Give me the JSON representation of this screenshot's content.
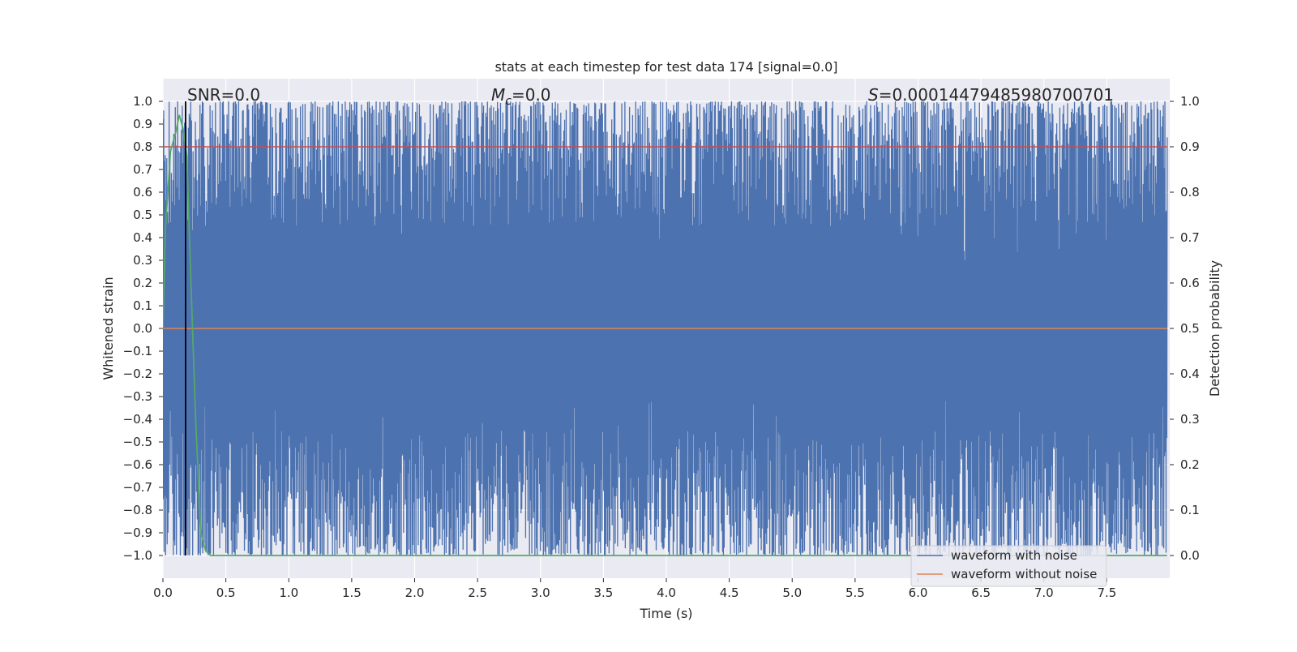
{
  "chart_data": {
    "type": "line",
    "title": "stats at each timestep for test data 174 [signal=0.0]",
    "xlabel": "Time (s)",
    "ylabel": "Whitened strain",
    "y2label": "Detection probability",
    "xlim": [
      0.0,
      8.0
    ],
    "ylim": [
      -1.1,
      1.1
    ],
    "y2lim": [
      -0.05,
      1.05
    ],
    "x_ticks": [
      "0.0",
      "0.5",
      "1.0",
      "1.5",
      "2.0",
      "2.5",
      "3.0",
      "3.5",
      "4.0",
      "4.5",
      "5.0",
      "5.5",
      "6.0",
      "6.5",
      "7.0",
      "7.5"
    ],
    "y_ticks": [
      "1.0",
      "0.9",
      "0.8",
      "0.7",
      "0.6",
      "0.5",
      "0.4",
      "0.3",
      "0.2",
      "0.1",
      "0.0",
      "−0.1",
      "−0.2",
      "−0.3",
      "−0.4",
      "−0.5",
      "−0.6",
      "−0.7",
      "−0.8",
      "−0.9",
      "−1.0"
    ],
    "y2_ticks": [
      "1.0",
      "0.9",
      "0.8",
      "0.7",
      "0.6",
      "0.5",
      "0.4",
      "0.3",
      "0.2",
      "0.1",
      "0.0"
    ],
    "annotations": {
      "snr": "SNR=0.0",
      "mc_symbol": "M",
      "mc_sub": "c",
      "mc_value": "=0.0",
      "s_symbol": "S",
      "s_value": "=0.00014479485980700701"
    },
    "vertical_marker_x": 0.18,
    "threshold_line": 0.8,
    "grid": true,
    "legend": {
      "position": "bottom-right",
      "entries": [
        {
          "label": "waveform with noise",
          "color": "#4c72b0"
        },
        {
          "label": "waveform without noise",
          "color": "#dd8452"
        }
      ]
    },
    "series": [
      {
        "name": "waveform with noise",
        "color": "#4c72b0",
        "description_range": [
          -1.0,
          1.0
        ],
        "x_range": [
          0.0,
          7.98
        ]
      },
      {
        "name": "waveform without noise",
        "color": "#dd8452",
        "x": [
          0.0,
          7.98
        ],
        "y": [
          0.0,
          0.0
        ]
      },
      {
        "color": "#55a868",
        "axis": "right",
        "x": [
          0.0,
          0.02,
          0.06,
          0.1,
          0.13,
          0.16,
          0.19,
          0.22,
          0.26,
          0.3,
          0.34,
          0.38,
          0.45,
          7.98
        ],
        "y": [
          0.5,
          0.72,
          0.89,
          0.93,
          0.97,
          0.94,
          0.88,
          0.62,
          0.3,
          0.05,
          0.01,
          0.0,
          0.0,
          0.0
        ]
      }
    ]
  }
}
